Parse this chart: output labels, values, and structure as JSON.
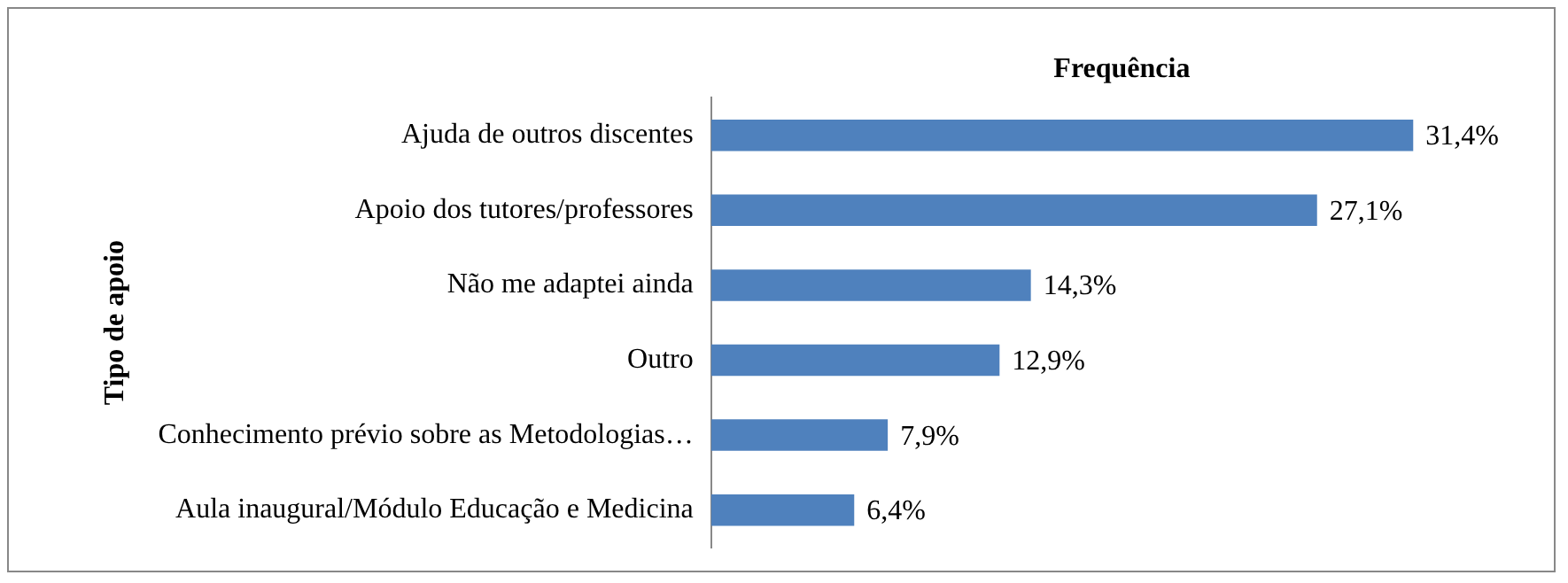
{
  "chart_data": {
    "type": "bar",
    "orientation": "horizontal",
    "title": "Frequência",
    "ylabel": "Tipo de apoio",
    "categories": [
      "Ajuda de outros discentes",
      "Apoio dos tutores/professores",
      "Não me adaptei ainda",
      "Outro",
      "Conhecimento prévio sobre as Metodologias…",
      "Aula inaugural/Módulo Educação e Medicina"
    ],
    "values": [
      31.4,
      27.1,
      14.3,
      12.9,
      7.9,
      6.4
    ],
    "value_labels": [
      "31,4%",
      "27,1%",
      "14,3%",
      "12,9%",
      "7,9%",
      "6,4%"
    ],
    "color": "#4f81bd",
    "legend": false
  }
}
